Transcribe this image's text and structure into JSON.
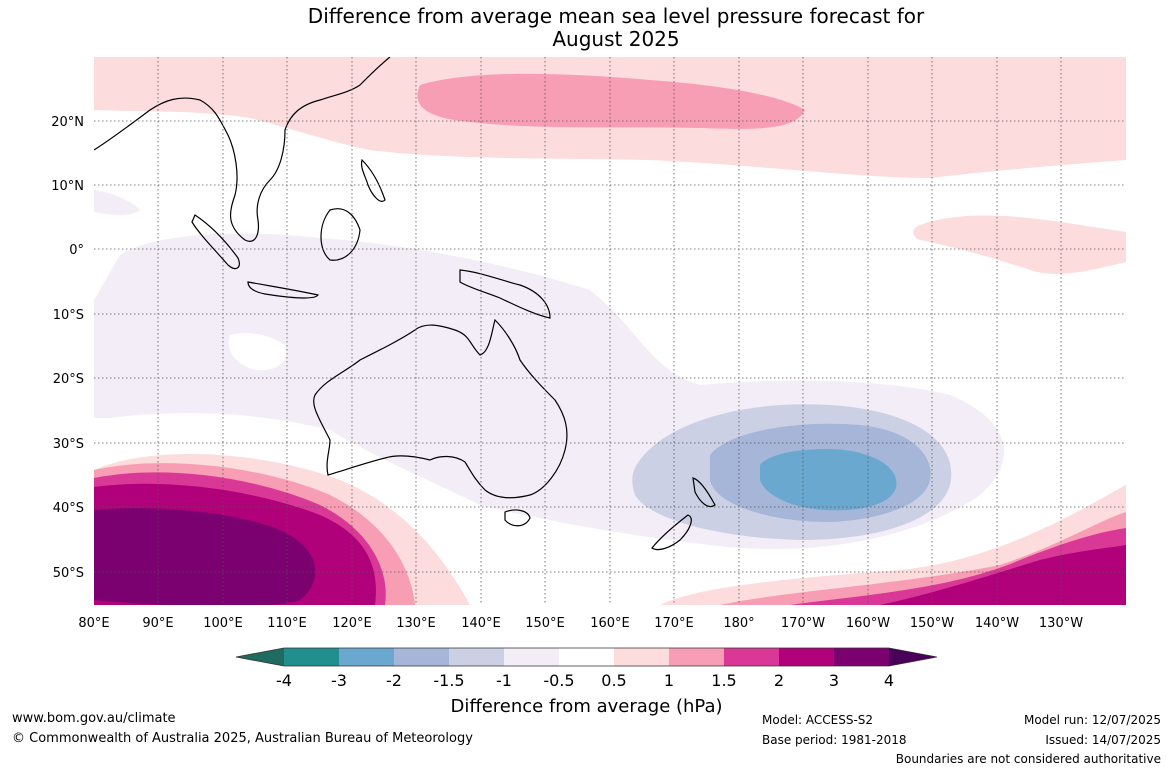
{
  "title_line1": "Difference from average mean sea level pressure forecast for",
  "title_line2": "August 2025",
  "map": {
    "lat_labels": [
      "20°N",
      "10°N",
      "0°",
      "10°S",
      "20°S",
      "30°S",
      "40°S",
      "50°S"
    ],
    "lon_labels": [
      "80°E",
      "90°E",
      "100°E",
      "110°E",
      "120°E",
      "130°E",
      "140°E",
      "150°E",
      "160°E",
      "170°E",
      "180°",
      "170°W",
      "160°W",
      "150°W",
      "140°W",
      "130°W"
    ],
    "extent": {
      "lon_min": 80,
      "lon_max": 240,
      "lat_min": -55,
      "lat_max": 30
    },
    "grid": "dotted",
    "anomaly_features": [
      {
        "type": "high",
        "location": "Southern Indian Ocean, south-west of Australia",
        "peak_hPa": 4
      },
      {
        "type": "high",
        "location": "Southern Ocean, south-east Pacific",
        "peak_hPa": 3
      },
      {
        "type": "high",
        "location": "North Pacific near 20°N",
        "peak_hPa": 1.5
      },
      {
        "type": "low",
        "location": "Tasman Sea / east of New Zealand",
        "peak_hPa": -3
      }
    ]
  },
  "colorbar": {
    "ticks": [
      "-4",
      "-3",
      "-2",
      "-1.5",
      "-1",
      "-0.5",
      "0.5",
      "1",
      "1.5",
      "2",
      "3",
      "4"
    ],
    "colors": [
      "#1f6b5f",
      "#208f8e",
      "#6aa8cf",
      "#a6b6d8",
      "#ccd0e4",
      "#f2edf6",
      "#ffffff",
      "#fcdcdc",
      "#f89eb4",
      "#d93896",
      "#b0007a",
      "#7b0070",
      "#4a005a"
    ],
    "label": "Difference from average (hPa)"
  },
  "footer": {
    "website": "www.bom.gov.au/climate",
    "copyright": "© Commonwealth of Australia 2025, Australian Bureau of Meteorology",
    "model": "Model: ACCESS-S2",
    "base_period": "Base period: 1981-2018",
    "model_run": "Model run: 12/07/2025",
    "issued": "Issued: 14/07/2025",
    "disclaimer": "Boundaries are not considered authoritative"
  }
}
